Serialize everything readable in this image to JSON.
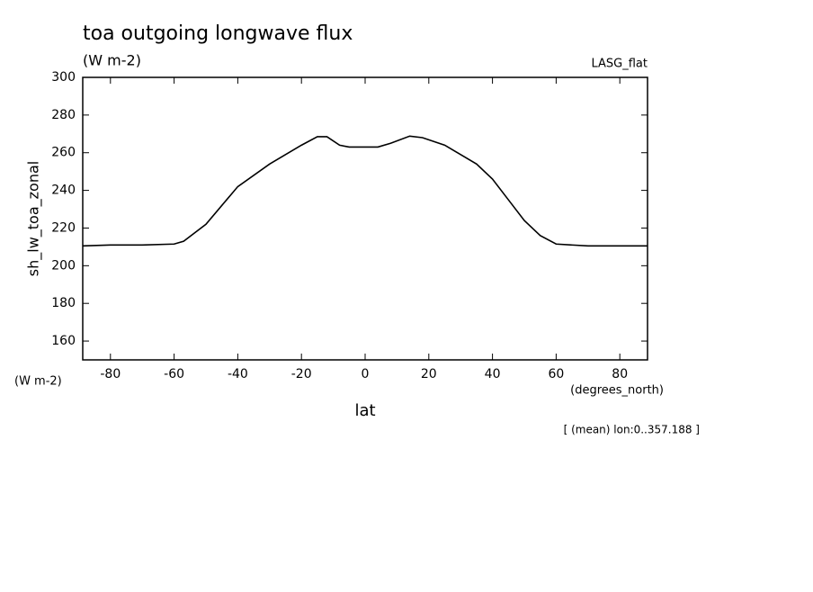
{
  "chart_data": {
    "type": "line",
    "title": "toa outgoing longwave flux",
    "subtitle": "(W m-2)",
    "source_label": "LASG_flat",
    "ylabel": "sh_lw_toa_zonal",
    "y_units": "(W m-2)",
    "xlabel": "lat",
    "x_units": "(degrees_north)",
    "annotation": "[ (mean) lon:0..357.188 ]",
    "x": [
      -88.7,
      -80,
      -70,
      -60,
      -57,
      -50,
      -40,
      -30,
      -20,
      -15,
      -12,
      -8,
      -5,
      0,
      4,
      8,
      14,
      18,
      25,
      30,
      35,
      40,
      45,
      50,
      55,
      60,
      70,
      80,
      88.7
    ],
    "series": [
      {
        "name": "sh_lw_toa_zonal",
        "color": "#000000",
        "values": [
          210.5,
          211,
          211,
          211.5,
          213,
          222,
          242,
          254,
          264,
          268.5,
          268.5,
          264,
          263,
          263,
          263,
          265,
          268.8,
          268,
          264,
          259,
          254,
          246,
          235,
          224,
          216,
          211.5,
          210.5,
          210.5,
          210.5
        ]
      }
    ],
    "xlim": [
      -88.7,
      88.7
    ],
    "xticks": [
      -80,
      -60,
      -40,
      -20,
      0,
      20,
      40,
      60,
      80
    ],
    "ylim": [
      150,
      300
    ],
    "yticks": [
      160,
      180,
      200,
      220,
      240,
      260,
      280,
      300
    ]
  }
}
